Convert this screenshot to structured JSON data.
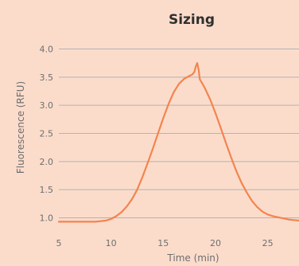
{
  "chart_data": {
    "type": "line",
    "title": "Sizing",
    "xlabel": "Time (min)",
    "ylabel": "Fluorescence (RFU)",
    "xlim": [
      5,
      28
    ],
    "ylim": [
      0.9,
      4.0
    ],
    "xticks": [
      5,
      10,
      15,
      20,
      25
    ],
    "xtick_labels": [
      "5",
      "10",
      "15",
      "20",
      "25"
    ],
    "yticks": [
      1.0,
      1.5,
      2.0,
      2.5,
      3.0,
      3.5,
      4.0
    ],
    "ytick_labels": [
      "1.0",
      "1.5",
      "2.0",
      "2.5",
      "3.0",
      "3.5",
      "4.0"
    ],
    "grid": "horizontal",
    "legend": "none",
    "colors": {
      "background": "#fbdccb",
      "line": "#f4844f",
      "grid": "#b3b3b3",
      "axis_text": "#6e6e6e",
      "title": "#2f2f2f"
    },
    "series": [
      {
        "x": [
          5.0,
          7.0,
          8.5,
          9.0,
          9.5,
          10.0,
          10.5,
          11.0,
          11.5,
          12.0,
          12.5,
          13.0,
          13.5,
          14.0,
          14.5,
          15.0,
          15.5,
          16.0,
          16.5,
          17.0,
          17.5,
          17.8,
          18.0,
          18.1,
          18.25,
          18.4,
          18.5,
          18.7,
          19.0,
          19.5,
          20.0,
          20.5,
          21.0,
          21.5,
          22.0,
          22.5,
          23.0,
          23.5,
          24.0,
          24.5,
          25.0,
          25.5,
          26.0,
          26.5,
          27.0,
          27.5,
          28.0
        ],
        "values": [
          0.93,
          0.93,
          0.93,
          0.94,
          0.95,
          0.98,
          1.03,
          1.1,
          1.2,
          1.33,
          1.5,
          1.72,
          1.97,
          2.23,
          2.5,
          2.77,
          3.02,
          3.23,
          3.38,
          3.47,
          3.52,
          3.55,
          3.6,
          3.68,
          3.75,
          3.62,
          3.46,
          3.4,
          3.3,
          3.1,
          2.86,
          2.6,
          2.33,
          2.07,
          1.83,
          1.62,
          1.45,
          1.3,
          1.19,
          1.11,
          1.06,
          1.03,
          1.01,
          0.99,
          0.97,
          0.96,
          0.95
        ]
      }
    ]
  }
}
